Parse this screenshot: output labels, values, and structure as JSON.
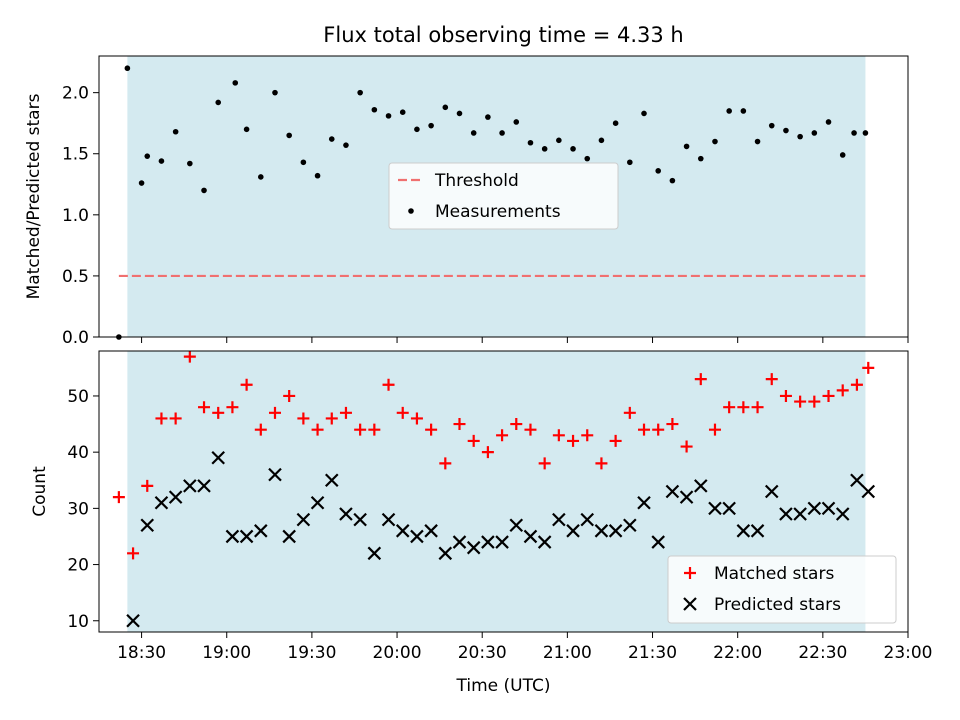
{
  "chart_data": [
    {
      "type": "scatter",
      "title": "Flux total observing time = 4.33 h",
      "ylabel": "Matched/Predicted stars",
      "xlim": [
        "18:15",
        "23:00"
      ],
      "ylim": [
        0,
        2.3
      ],
      "yticks": [
        "0.0",
        "0.5",
        "1.0",
        "1.5",
        "2.0"
      ],
      "observing_window": [
        "18:25",
        "22:45"
      ],
      "threshold": {
        "name": "Threshold",
        "value": 0.5,
        "x": [
          "18:22",
          "22:45"
        ],
        "color": "#f07070"
      },
      "legend_position": "center",
      "series": [
        {
          "name": "Measurements",
          "color": "#000000",
          "x": [
            "18:22",
            "18:25",
            "18:30",
            "18:32",
            "18:37",
            "18:42",
            "18:47",
            "18:52",
            "18:57",
            "19:03",
            "19:07",
            "19:12",
            "19:17",
            "19:22",
            "19:27",
            "19:32",
            "19:37",
            "19:42",
            "19:47",
            "19:52",
            "19:57",
            "20:02",
            "20:07",
            "20:12",
            "20:17",
            "20:22",
            "20:27",
            "20:32",
            "20:37",
            "20:42",
            "20:47",
            "20:52",
            "20:57",
            "21:02",
            "21:07",
            "21:12",
            "21:17",
            "21:22",
            "21:27",
            "21:32",
            "21:37",
            "21:42",
            "21:47",
            "21:52",
            "21:57",
            "22:02",
            "22:07",
            "22:12",
            "22:17",
            "22:22",
            "22:27",
            "22:32",
            "22:37",
            "22:41",
            "22:45"
          ],
          "y": [
            0.0,
            2.2,
            1.26,
            1.48,
            1.44,
            1.68,
            1.42,
            1.2,
            1.92,
            2.08,
            1.7,
            1.31,
            2.0,
            1.65,
            1.43,
            1.32,
            1.62,
            1.57,
            2.0,
            1.86,
            1.81,
            1.84,
            1.7,
            1.73,
            1.88,
            1.83,
            1.67,
            1.8,
            1.67,
            1.76,
            1.59,
            1.54,
            1.61,
            1.54,
            1.46,
            1.61,
            1.75,
            1.43,
            1.83,
            1.36,
            1.28,
            1.56,
            1.46,
            1.6,
            1.85,
            1.85,
            1.6,
            1.73,
            1.69,
            1.64,
            1.67,
            1.76,
            1.49,
            1.67,
            1.67
          ]
        }
      ]
    },
    {
      "type": "scatter",
      "xlabel": "Time (UTC)",
      "ylabel": "Count",
      "xlim": [
        "18:15",
        "23:00"
      ],
      "ylim": [
        8,
        58
      ],
      "xticks": [
        "18:30",
        "19:00",
        "19:30",
        "20:00",
        "20:30",
        "21:00",
        "21:30",
        "22:00",
        "22:30",
        "23:00"
      ],
      "yticks": [
        "10",
        "20",
        "30",
        "40",
        "50"
      ],
      "observing_window": [
        "18:25",
        "22:45"
      ],
      "legend_position": "lower right",
      "series": [
        {
          "name": "Matched stars",
          "marker": "plus",
          "color": "#ff0000",
          "x": [
            "18:22",
            "18:27",
            "18:32",
            "18:37",
            "18:42",
            "18:47",
            "18:52",
            "18:57",
            "19:02",
            "19:07",
            "19:12",
            "19:17",
            "19:22",
            "19:27",
            "19:32",
            "19:37",
            "19:42",
            "19:47",
            "19:52",
            "19:57",
            "20:02",
            "20:07",
            "20:12",
            "20:17",
            "20:22",
            "20:27",
            "20:32",
            "20:37",
            "20:42",
            "20:47",
            "20:52",
            "20:57",
            "21:02",
            "21:07",
            "21:12",
            "21:17",
            "21:22",
            "21:27",
            "21:32",
            "21:37",
            "21:42",
            "21:47",
            "21:52",
            "21:57",
            "22:02",
            "22:07",
            "22:12",
            "22:17",
            "22:22",
            "22:27",
            "22:32",
            "22:37",
            "22:42",
            "22:46"
          ],
          "y": [
            32,
            22,
            34,
            46,
            46,
            57,
            48,
            47,
            48,
            52,
            44,
            47,
            50,
            46,
            44,
            46,
            47,
            44,
            44,
            52,
            47,
            46,
            44,
            38,
            45,
            42,
            40,
            43,
            45,
            44,
            38,
            43,
            42,
            43,
            38,
            42,
            47,
            44,
            44,
            45,
            41,
            53,
            44,
            48,
            48,
            48,
            53,
            50,
            49,
            49,
            50,
            51,
            52,
            55
          ]
        },
        {
          "name": "Predicted stars",
          "marker": "x",
          "color": "#000000",
          "x": [
            "18:27",
            "18:32",
            "18:37",
            "18:42",
            "18:47",
            "18:52",
            "18:57",
            "19:02",
            "19:07",
            "19:12",
            "19:17",
            "19:22",
            "19:27",
            "19:32",
            "19:37",
            "19:42",
            "19:47",
            "19:52",
            "19:57",
            "20:02",
            "20:07",
            "20:12",
            "20:17",
            "20:22",
            "20:27",
            "20:32",
            "20:37",
            "20:42",
            "20:47",
            "20:52",
            "20:57",
            "21:02",
            "21:07",
            "21:12",
            "21:17",
            "21:22",
            "21:27",
            "21:32",
            "21:37",
            "21:42",
            "21:47",
            "21:52",
            "21:57",
            "22:02",
            "22:07",
            "22:12",
            "22:17",
            "22:22",
            "22:27",
            "22:32",
            "22:37",
            "22:42",
            "22:46"
          ],
          "y": [
            10,
            27,
            31,
            32,
            34,
            34,
            39,
            25,
            25,
            26,
            36,
            25,
            28,
            31,
            35,
            29,
            28,
            22,
            28,
            26,
            25,
            26,
            22,
            24,
            23,
            24,
            24,
            27,
            25,
            24,
            28,
            26,
            28,
            26,
            26,
            27,
            31,
            24,
            33,
            32,
            34,
            30,
            30,
            26,
            26,
            33,
            29,
            29,
            30,
            30,
            29,
            35,
            33
          ]
        }
      ]
    }
  ]
}
